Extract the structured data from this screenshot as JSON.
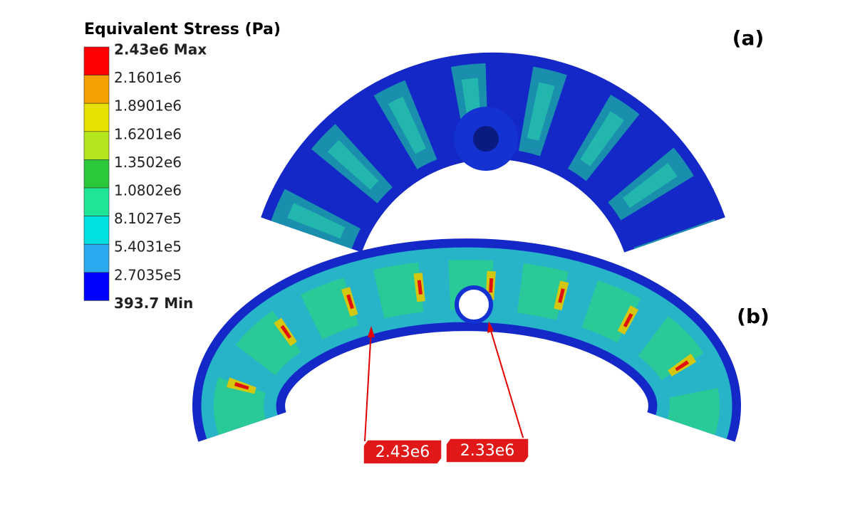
{
  "legend": {
    "title": "Equivalent Stress (Pa)",
    "levels": [
      "2.43e6 Max",
      "2.1601e6",
      "1.8901e6",
      "1.6201e6",
      "1.3502e6",
      "1.0802e6",
      "8.1027e5",
      "5.4031e5",
      "2.7035e5",
      "393.7 Min"
    ],
    "colors": [
      "#ff0000",
      "#f5a000",
      "#e8e000",
      "#b4e61e",
      "#2cc83c",
      "#1ee696",
      "#00e0e0",
      "#28aaf0",
      "#0000ff"
    ]
  },
  "panels": [
    "(a)",
    "(b)"
  ],
  "callouts": [
    "2.43e6",
    "2.33e6"
  ]
}
